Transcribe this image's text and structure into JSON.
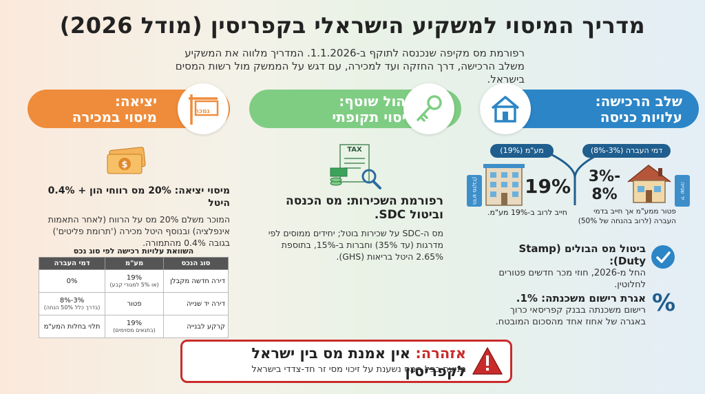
{
  "header": {
    "title": "מדריך המיסוי למשקיע הישראלי בקפריסין (מודל 2026)",
    "subtitle": "רפורמת מס מקיפה שנכנסה לתוקף ב-1.1.2026. המדריך מלווה את המשקיע משלב הרכישה, דרך החזקה ועד למכירה, עם דגש על הממשק מול רשות המסים בישראל."
  },
  "acquisition": {
    "banner_line1": "שלב הרכישה:",
    "banner_line2": "עלויות כניסה",
    "icon": "house-icon",
    "vat_pill": "מע\"מ (19%)",
    "transfer_pill": "דמי העברה (3%-8%)",
    "vat_value": "19%",
    "vat_caption": "חייב לרוב ב-19% מע\"מ.",
    "vat_tag": "חדש מקבלן",
    "transfer_value_line1": "3%-",
    "transfer_value_line2": "8%",
    "transfer_caption": "פטור ממע\"מ אך חייב בדמי העברה (לרוב בהנחה של 50%)",
    "transfer_tag": "יד שנייה",
    "stamp_heading": "ביטול מס הבולים (Stamp Duty):",
    "stamp_text": "החל מ-2026, חוזי מכר חדשים פטורים לחלוטין.",
    "mortgage_heading": "אגרת רישום משכנתה: 1%.",
    "mortgage_text": "רישום משכנתה בבנק קפריסאי כרוך באגרה של אחוז אחד מהסכום המובטח."
  },
  "holding": {
    "banner_line1": "ניהול שוטף:",
    "banner_line2": "מיסוי תקופתי",
    "icon": "key-icon",
    "doc_label": "TAX",
    "heading": "רפורמת השכירות: מס הכנסה וביטול SDC.",
    "text": "מס ה-SDC על שכירות בוטל; יחידים ממוסים לפי מדרגות (עד 35%) וחברות ב-15%, בתוספת 2.65% היטל בריאות (GHS)."
  },
  "exit": {
    "banner_line1": "יציאה:",
    "banner_line2": "מיסוי במכירה",
    "sign_label": "נמכר",
    "icon": "money-icon",
    "heading": "מיסוי יציאה: 20% מס רווחי הון + 0.4% היטל",
    "text": "המוכר משלם 20% מס על הרווח (לאחר התאמות אינפלציה) ובנוסף היטל מכירה ('תרומת פליטים') בגובה 0.4% מהתמורה.",
    "table_title": "השוואת עלויות רכישה לפי סוג נכס",
    "table_headers": [
      "סוג הנכס",
      "מע\"מ",
      "דמי העברה"
    ],
    "table_rows": [
      {
        "type": "דירה חדשה מקבלן",
        "vat": "19%",
        "vat_note": "(או 5% למגורי קבע)",
        "transfer": "0%",
        "transfer_note": ""
      },
      {
        "type": "דירה יד שנייה",
        "vat": "פטור",
        "vat_note": "",
        "transfer": "3%-8%",
        "transfer_note": "(בדרך כלל 50% הנחה)"
      },
      {
        "type": "קרקע לבנייה",
        "vat": "19%",
        "vat_note": "(בתנאים מסוימים)",
        "transfer": "תלוי בחלות המע\"מ",
        "transfer_note": ""
      }
    ]
  },
  "warning": {
    "label": "אזהרה:",
    "title": "אין אמנת מס בין ישראל לקפריסין",
    "text": "מניעת כפל המס נשענת על זיכוי מסי זר חד-צדדי בישראל"
  },
  "colors": {
    "blue": "#2c85c6",
    "green": "#7fcd83",
    "orange": "#ef8c3b",
    "red": "#c92b2b",
    "navy": "#1f5e8e"
  }
}
